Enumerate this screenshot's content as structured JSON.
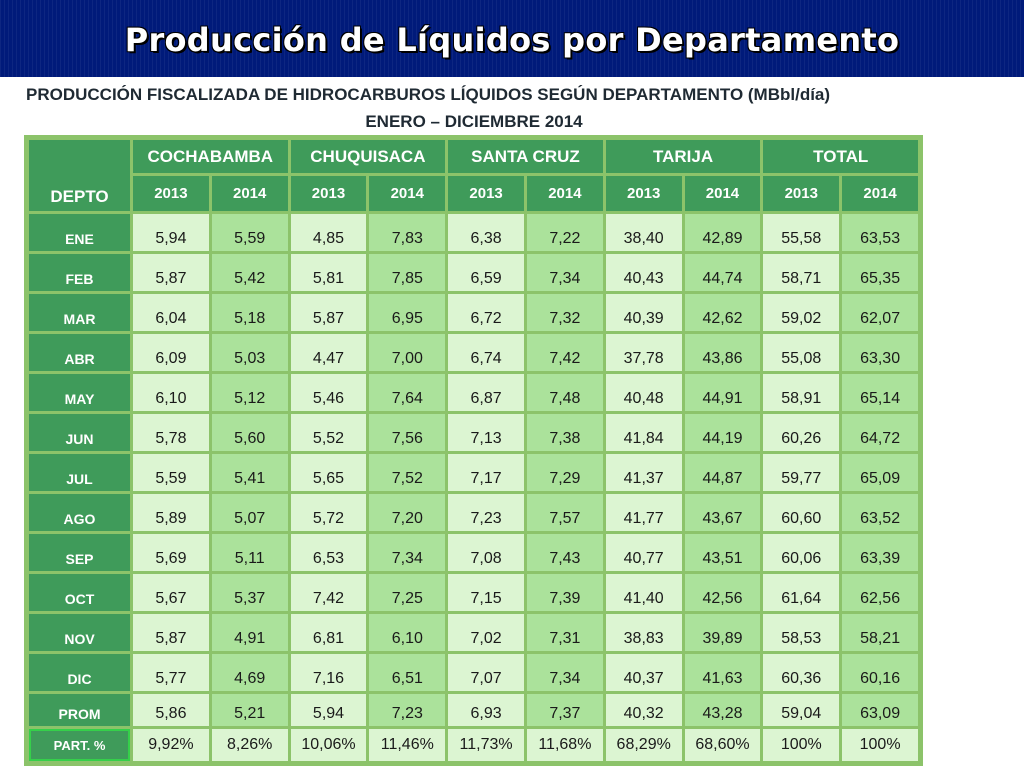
{
  "title": "Producción de Líquidos por Departamento",
  "subtitle": "PRODUCCIÓN FISCALIZADA DE HIDROCARBUROS LÍQUIDOS SEGÚN DEPARTAMENTO (MBbl/día)",
  "period": "ENERO – DICIEMBRE 2014",
  "table": {
    "corner": "DEPTO",
    "groups": [
      "COCHABAMBA",
      "CHUQUISACA",
      "SANTA CRUZ",
      "TARIJA",
      "TOTAL"
    ],
    "years": [
      "2013",
      "2014"
    ],
    "rows": [
      {
        "month": "ENE",
        "values": [
          "5,94",
          "5,59",
          "4,85",
          "7,83",
          "6,38",
          "7,22",
          "38,40",
          "42,89",
          "55,58",
          "63,53"
        ]
      },
      {
        "month": "FEB",
        "values": [
          "5,87",
          "5,42",
          "5,81",
          "7,85",
          "6,59",
          "7,34",
          "40,43",
          "44,74",
          "58,71",
          "65,35"
        ]
      },
      {
        "month": "MAR",
        "values": [
          "6,04",
          "5,18",
          "5,87",
          "6,95",
          "6,72",
          "7,32",
          "40,39",
          "42,62",
          "59,02",
          "62,07"
        ]
      },
      {
        "month": "ABR",
        "values": [
          "6,09",
          "5,03",
          "4,47",
          "7,00",
          "6,74",
          "7,42",
          "37,78",
          "43,86",
          "55,08",
          "63,30"
        ]
      },
      {
        "month": "MAY",
        "values": [
          "6,10",
          "5,12",
          "5,46",
          "7,64",
          "6,87",
          "7,48",
          "40,48",
          "44,91",
          "58,91",
          "65,14"
        ]
      },
      {
        "month": "JUN",
        "values": [
          "5,78",
          "5,60",
          "5,52",
          "7,56",
          "7,13",
          "7,38",
          "41,84",
          "44,19",
          "60,26",
          "64,72"
        ]
      },
      {
        "month": "JUL",
        "values": [
          "5,59",
          "5,41",
          "5,65",
          "7,52",
          "7,17",
          "7,29",
          "41,37",
          "44,87",
          "59,77",
          "65,09"
        ]
      },
      {
        "month": "AGO",
        "values": [
          "5,89",
          "5,07",
          "5,72",
          "7,20",
          "7,23",
          "7,57",
          "41,77",
          "43,67",
          "60,60",
          "63,52"
        ]
      },
      {
        "month": "SEP",
        "values": [
          "5,69",
          "5,11",
          "6,53",
          "7,34",
          "7,08",
          "7,43",
          "40,77",
          "43,51",
          "60,06",
          "63,39"
        ]
      },
      {
        "month": "OCT",
        "values": [
          "5,67",
          "5,37",
          "7,42",
          "7,25",
          "7,15",
          "7,39",
          "41,40",
          "42,56",
          "61,64",
          "62,56"
        ]
      },
      {
        "month": "NOV",
        "values": [
          "5,87",
          "4,91",
          "6,81",
          "6,10",
          "7,02",
          "7,31",
          "38,83",
          "39,89",
          "58,53",
          "58,21"
        ]
      },
      {
        "month": "DIC",
        "values": [
          "5,77",
          "4,69",
          "7,16",
          "6,51",
          "7,07",
          "7,34",
          "40,37",
          "41,63",
          "60,36",
          "60,16"
        ]
      },
      {
        "month": "PROM",
        "values": [
          "5,86",
          "5,21",
          "5,94",
          "7,23",
          "6,93",
          "7,37",
          "40,32",
          "43,28",
          "59,04",
          "63,09"
        ]
      }
    ],
    "part": {
      "label": "PART. %",
      "values": [
        "9,92%",
        "8,26%",
        "10,06%",
        "11,46%",
        "11,73%",
        "11,68%",
        "68,29%",
        "68,60%",
        "100%",
        "100%"
      ]
    }
  }
}
